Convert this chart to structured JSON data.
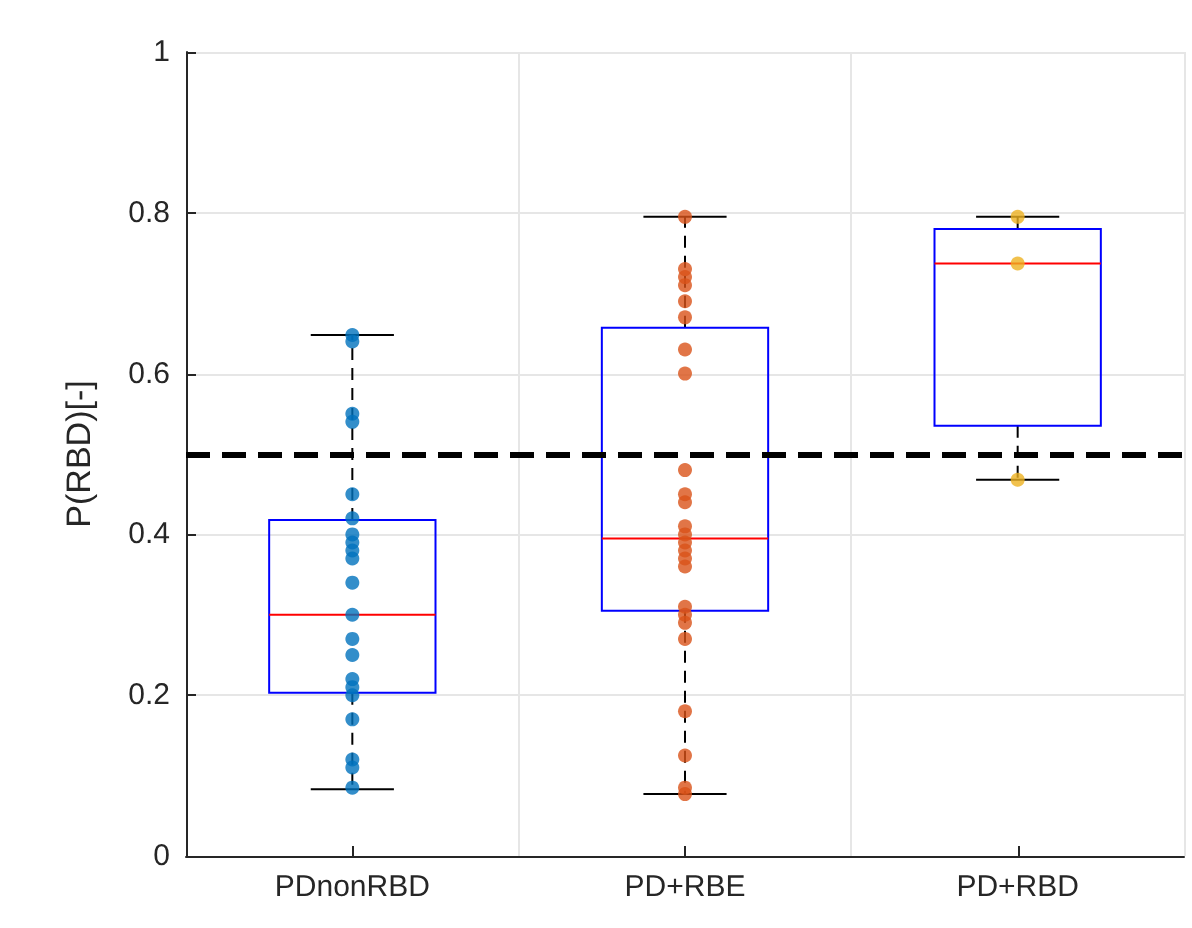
{
  "chart_data": {
    "type": "box",
    "ylabel": "P(RBD)[-]",
    "categories": [
      "PDnonRBD",
      "PD+RBE",
      "PD+RBD"
    ],
    "ylim": [
      0,
      1
    ],
    "yticks": [
      0,
      0.2,
      0.4,
      0.6,
      0.8,
      1
    ],
    "grid": true,
    "ref_lines": [
      {
        "axis": "y",
        "value": 0.5,
        "color": "#000000",
        "line_style": "dashed"
      }
    ],
    "series": [
      {
        "color": "#0000ff",
        "boxes": [
          {
            "low": 0.083,
            "q1": 0.203,
            "median": 0.3,
            "q3": 0.418,
            "high": 0.648
          },
          {
            "low": 0.077,
            "q1": 0.305,
            "median": 0.395,
            "q3": 0.657,
            "high": 0.795
          },
          {
            "low": 0.468,
            "q1": 0.535,
            "median": 0.737,
            "q3": 0.78,
            "high": 0.795
          }
        ]
      },
      {
        "type": "scatter",
        "color": "#0072bd",
        "x": [
          "PDnonRBD",
          "PDnonRBD",
          "PDnonRBD",
          "PDnonRBD",
          "PDnonRBD",
          "PDnonRBD",
          "PDnonRBD",
          "PDnonRBD",
          "PDnonRBD",
          "PDnonRBD",
          "PDnonRBD",
          "PDnonRBD",
          "PDnonRBD",
          "PDnonRBD",
          "PDnonRBD",
          "PDnonRBD",
          "PDnonRBD",
          "PDnonRBD",
          "PDnonRBD",
          "PDnonRBD",
          "PDnonRBD"
        ],
        "values": [
          0.648,
          0.64,
          0.55,
          0.54,
          0.45,
          0.42,
          0.4,
          0.39,
          0.38,
          0.37,
          0.34,
          0.3,
          0.27,
          0.25,
          0.22,
          0.21,
          0.2,
          0.17,
          0.12,
          0.11,
          0.085
        ]
      },
      {
        "type": "scatter",
        "color": "#d95319",
        "x": [
          "PD+RBE",
          "PD+RBE",
          "PD+RBE",
          "PD+RBE",
          "PD+RBE",
          "PD+RBE",
          "PD+RBE",
          "PD+RBE",
          "PD+RBE",
          "PD+RBE",
          "PD+RBE",
          "PD+RBE",
          "PD+RBE",
          "PD+RBE",
          "PD+RBE",
          "PD+RBE",
          "PD+RBE",
          "PD+RBE",
          "PD+RBE",
          "PD+RBE",
          "PD+RBE",
          "PD+RBE",
          "PD+RBE",
          "PD+RBE",
          "PD+RBE"
        ],
        "values": [
          0.795,
          0.73,
          0.72,
          0.71,
          0.69,
          0.67,
          0.63,
          0.6,
          0.48,
          0.45,
          0.44,
          0.41,
          0.4,
          0.39,
          0.38,
          0.37,
          0.36,
          0.31,
          0.3,
          0.29,
          0.27,
          0.18,
          0.125,
          0.085,
          0.077
        ]
      },
      {
        "type": "scatter",
        "color": "#edb120",
        "x": [
          "PD+RBD",
          "PD+RBD",
          "PD+RBD"
        ],
        "values": [
          0.795,
          0.737,
          0.468
        ]
      }
    ]
  }
}
